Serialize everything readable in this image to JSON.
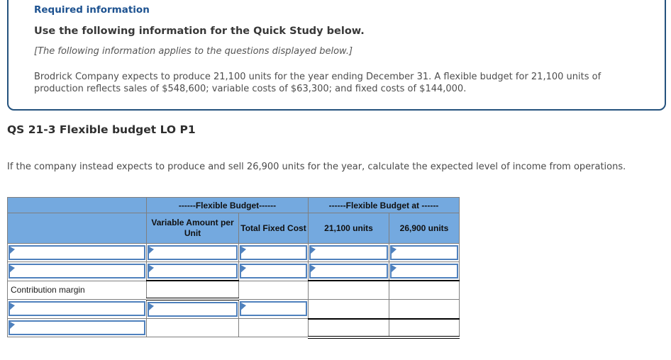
{
  "info_box": {
    "label": "Required information",
    "title": "Use the following information for the Quick Study below.",
    "note": "[The following information applies to the questions displayed below.]",
    "body": "Brodrick Company expects to produce 21,100 units for the year ending December 31. A flexible budget for 21,100 units of production reflects sales of $548,600; variable costs of $63,300; and fixed costs of $144,000."
  },
  "question": {
    "heading": "QS 21-3 Flexible budget LO P1",
    "prompt": "If the company instead expects to produce and sell 26,900 units for the year, calculate the expected level of income from operations."
  },
  "table": {
    "group_headers": [
      {
        "label": ""
      },
      {
        "label": "------Flexible Budget------"
      },
      {
        "label": "------Flexible Budget at ------"
      }
    ],
    "column_headers": [
      "",
      "Variable Amount per Unit",
      "Total Fixed Cost",
      "21,100 units",
      "26,900 units"
    ],
    "rows": [
      {
        "label": "",
        "cells": [
          "",
          "",
          "",
          ""
        ]
      },
      {
        "label": "",
        "cells": [
          "",
          "",
          "",
          ""
        ]
      },
      {
        "label": "Contribution margin",
        "cells": [
          "",
          "",
          "",
          ""
        ]
      },
      {
        "label": "",
        "cells": [
          "",
          "",
          "",
          ""
        ]
      },
      {
        "label": "",
        "cells": [
          "",
          "",
          "",
          ""
        ]
      }
    ]
  },
  "icons": {
    "input_marker": "right-pointing-triangle"
  },
  "colors": {
    "panel_border": "#24527d",
    "required_info_blue": "#1d5290",
    "table_header_blue": "#74a9df",
    "input_border_blue": "#4f81bd",
    "grid_gray": "#7f7f7f",
    "rule_black": "#000000"
  }
}
